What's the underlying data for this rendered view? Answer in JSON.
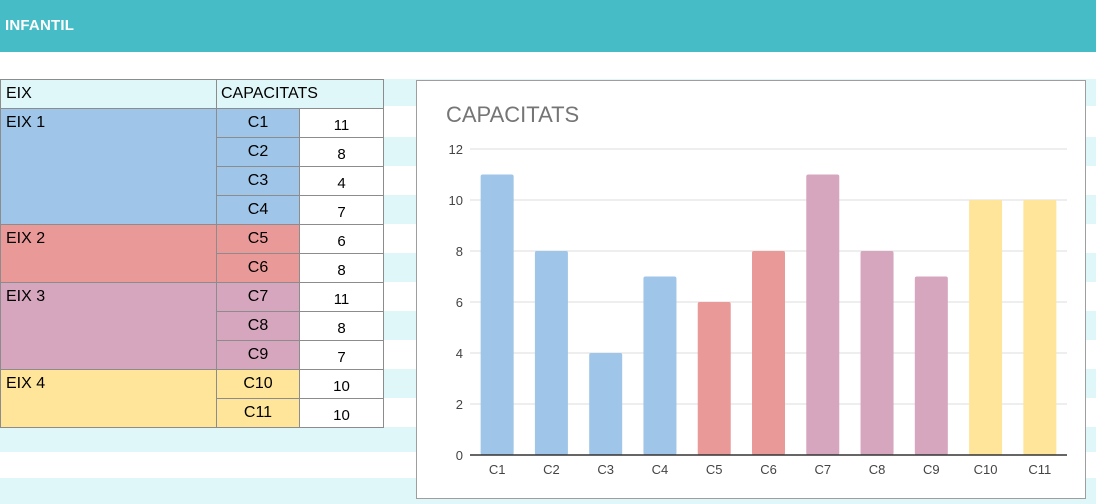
{
  "header": {
    "title": "INFANTIL"
  },
  "table": {
    "headers": {
      "eix": "EIX",
      "capacitats": "CAPACITATS"
    },
    "groups": [
      {
        "label": "EIX 1",
        "color": "#9fc5e8",
        "rows": [
          {
            "cap": "C1",
            "value": "11"
          },
          {
            "cap": "C2",
            "value": "8"
          },
          {
            "cap": "C3",
            "value": "4"
          },
          {
            "cap": "C4",
            "value": "7"
          }
        ]
      },
      {
        "label": "EIX 2",
        "color": "#ea9999",
        "rows": [
          {
            "cap": "C5",
            "value": "6"
          },
          {
            "cap": "C6",
            "value": "8"
          }
        ]
      },
      {
        "label": "EIX 3",
        "color": "#d5a6bd",
        "rows": [
          {
            "cap": "C7",
            "value": "11"
          },
          {
            "cap": "C8",
            "value": "8"
          },
          {
            "cap": "C9",
            "value": "7"
          }
        ]
      },
      {
        "label": "EIX 4",
        "color": "#ffe599",
        "rows": [
          {
            "cap": "C10",
            "value": "10"
          },
          {
            "cap": "C11",
            "value": "10"
          }
        ]
      }
    ]
  },
  "chart_data": {
    "type": "bar",
    "title": "CAPACITATS",
    "xlabel": "",
    "ylabel": "",
    "categories": [
      "C1",
      "C2",
      "C3",
      "C4",
      "C5",
      "C6",
      "C7",
      "C8",
      "C9",
      "C10",
      "C11"
    ],
    "values": [
      11,
      8,
      4,
      7,
      6,
      8,
      11,
      8,
      7,
      10,
      10
    ],
    "colors": [
      "#9fc5e8",
      "#9fc5e8",
      "#9fc5e8",
      "#9fc5e8",
      "#ea9999",
      "#ea9999",
      "#d5a6bd",
      "#d5a6bd",
      "#d5a6bd",
      "#ffe599",
      "#ffe599"
    ],
    "ylim": [
      0,
      12
    ],
    "yticks": [
      0,
      2,
      4,
      6,
      8,
      10,
      12
    ],
    "grid": true,
    "legend": "none"
  }
}
